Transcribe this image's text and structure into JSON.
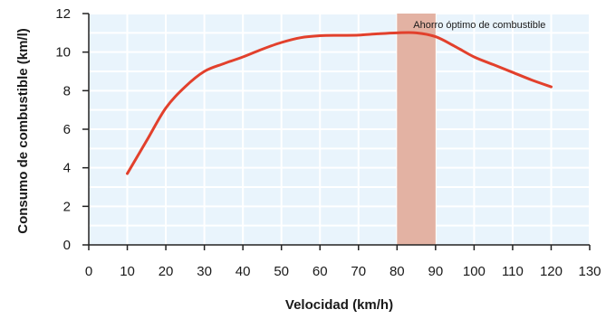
{
  "chart_data": {
    "type": "line",
    "title": "",
    "xlabel": "Velocidad (km/h)",
    "ylabel": "Consumo de combustible (km/l)",
    "xlim": [
      0,
      130
    ],
    "ylim": [
      0,
      12
    ],
    "xticks": [
      0,
      10,
      20,
      30,
      40,
      50,
      60,
      70,
      80,
      90,
      100,
      110,
      120,
      130
    ],
    "yticks": [
      0,
      2,
      4,
      6,
      8,
      10,
      12
    ],
    "grid": true,
    "series": [
      {
        "x": [
          10,
          15,
          20,
          25,
          30,
          35,
          40,
          45,
          50,
          55,
          60,
          65,
          70,
          75,
          80,
          85,
          90,
          95,
          100,
          105,
          110,
          115,
          120
        ],
        "y": [
          3.7,
          5.4,
          7.1,
          8.2,
          9.0,
          9.4,
          9.75,
          10.15,
          10.5,
          10.75,
          10.85,
          10.87,
          10.88,
          10.95,
          11.0,
          11.0,
          10.8,
          10.3,
          9.75,
          9.35,
          8.95,
          8.55,
          8.2
        ],
        "color": "#e2402c"
      }
    ],
    "highlight_band": {
      "x_range": [
        80,
        90
      ],
      "label": "Ahorro óptimo de combustible",
      "color": "#e3b2a3"
    },
    "colors": {
      "plot_background": "#e9f4fc",
      "grid": "#ffffff",
      "axis": "#222222"
    }
  }
}
